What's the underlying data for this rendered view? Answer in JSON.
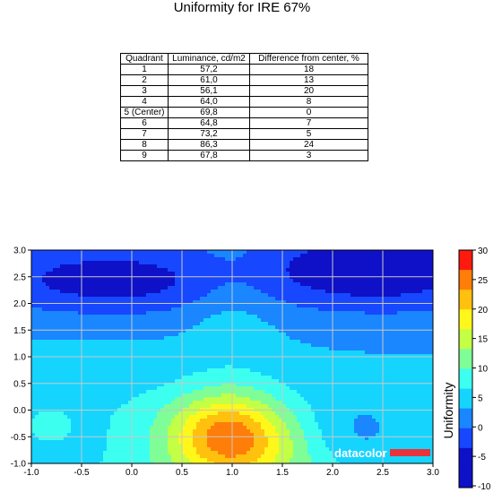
{
  "title": "Uniformity for IRE 67%",
  "table": {
    "headers": [
      "Quadrant",
      "Luminance, cd/m2",
      "Difference from center, %"
    ],
    "rows": [
      [
        "1",
        "57,2",
        "18"
      ],
      [
        "2",
        "61,0",
        "13"
      ],
      [
        "3",
        "56,1",
        "20"
      ],
      [
        "4",
        "64,0",
        "8"
      ],
      [
        "5 (Center)",
        "69,8",
        "0"
      ],
      [
        "6",
        "64,8",
        "7"
      ],
      [
        "7",
        "73,2",
        "5"
      ],
      [
        "8",
        "86,3",
        "24"
      ],
      [
        "9",
        "67,8",
        "3"
      ]
    ]
  },
  "chart_data": {
    "type": "heatmap",
    "xlim": [
      -1.0,
      3.0
    ],
    "ylim": [
      -1.0,
      3.0
    ],
    "x_ticks": [
      "-1.0",
      "-0.5",
      "0.0",
      "0.5",
      "1.0",
      "1.5",
      "2.0",
      "2.5",
      "3.0"
    ],
    "y_ticks": [
      "3.0",
      "2.5",
      "2.0",
      "1.5",
      "1.0",
      "0.5",
      "0.0",
      "-0.5",
      "-1.0"
    ],
    "grid": true,
    "colorbar": {
      "label": "Uniformity",
      "ticks": [
        "30",
        "25",
        "20",
        "15",
        "10",
        "5",
        "0",
        "-5",
        "-10"
      ],
      "range": [
        -10,
        30
      ],
      "colors": [
        "#0e11c7",
        "#1747ff",
        "#1a86ff",
        "#15d5ff",
        "#3dfff0",
        "#7ffe97",
        "#c3ff45",
        "#fff71a",
        "#ffc10e",
        "#ff7d09",
        "#ff1a0f"
      ]
    },
    "points": [
      {
        "x": -1.0,
        "y": 3.0,
        "v": -8
      },
      {
        "x": 1.0,
        "y": 3.0,
        "v": -6
      },
      {
        "x": 3.0,
        "y": 3.0,
        "v": -10
      },
      {
        "x": -1.0,
        "y": 1.0,
        "v": 3
      },
      {
        "x": 1.0,
        "y": 1.0,
        "v": 2
      },
      {
        "x": 3.0,
        "y": 1.0,
        "v": 0
      },
      {
        "x": -1.0,
        "y": -1.0,
        "v": 5
      },
      {
        "x": 1.0,
        "y": -1.0,
        "v": 22
      },
      {
        "x": 3.0,
        "y": -1.0,
        "v": 8
      }
    ],
    "watermark": "datacolor",
    "watermark_color": "#e8323c"
  }
}
